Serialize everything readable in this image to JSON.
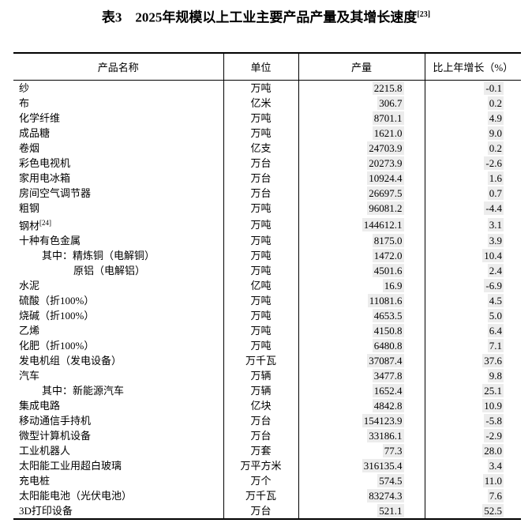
{
  "title": {
    "text": "表3　2025年规模以上工业主要产品产量及其增长速度",
    "superscript": "[23]"
  },
  "table": {
    "headers": {
      "product": "产品名称",
      "unit": "单位",
      "output": "产量",
      "growth": "比上年增长（%）"
    },
    "field_shading_color": "#ececec",
    "border_color": "#000000",
    "rows": [
      {
        "name": "纱",
        "indent": 0,
        "sup": "",
        "unit": "万吨",
        "output": "2215.8",
        "growth": "-0.1"
      },
      {
        "name": "布",
        "indent": 0,
        "sup": "",
        "unit": "亿米",
        "output": "306.7",
        "growth": "0.2"
      },
      {
        "name": "化学纤维",
        "indent": 0,
        "sup": "",
        "unit": "万吨",
        "output": "8701.1",
        "growth": "4.9"
      },
      {
        "name": "成品糖",
        "indent": 0,
        "sup": "",
        "unit": "万吨",
        "output": "1621.0",
        "growth": "9.0"
      },
      {
        "name": "卷烟",
        "indent": 0,
        "sup": "",
        "unit": "亿支",
        "output": "24703.9",
        "growth": "0.2"
      },
      {
        "name": "彩色电视机",
        "indent": 0,
        "sup": "",
        "unit": "万台",
        "output": "20273.9",
        "growth": "-2.6"
      },
      {
        "name": "家用电冰箱",
        "indent": 0,
        "sup": "",
        "unit": "万台",
        "output": "10924.4",
        "growth": "1.6"
      },
      {
        "name": "房间空气调节器",
        "indent": 0,
        "sup": "",
        "unit": "万台",
        "output": "26697.5",
        "growth": "0.7"
      },
      {
        "name": "粗钢",
        "indent": 0,
        "sup": "",
        "unit": "万吨",
        "output": "96081.2",
        "growth": "-4.4"
      },
      {
        "name": "钢材",
        "indent": 0,
        "sup": "[24]",
        "unit": "万吨",
        "output": "144612.1",
        "growth": "3.1"
      },
      {
        "name": "十种有色金属",
        "indent": 0,
        "sup": "",
        "unit": "万吨",
        "output": "8175.0",
        "growth": "3.9"
      },
      {
        "name": "其中：精炼铜（电解铜）",
        "indent": 1,
        "sup": "",
        "unit": "万吨",
        "output": "1472.0",
        "growth": "10.4"
      },
      {
        "name": "原铝（电解铝）",
        "indent": 2,
        "sup": "",
        "unit": "万吨",
        "output": "4501.6",
        "growth": "2.4"
      },
      {
        "name": "水泥",
        "indent": 0,
        "sup": "",
        "unit": "亿吨",
        "output": "16.9",
        "growth": "-6.9"
      },
      {
        "name": "硫酸（折100%）",
        "indent": 0,
        "sup": "",
        "unit": "万吨",
        "output": "11081.6",
        "growth": "4.5"
      },
      {
        "name": "烧碱（折100%）",
        "indent": 0,
        "sup": "",
        "unit": "万吨",
        "output": "4653.5",
        "growth": "5.0"
      },
      {
        "name": "乙烯",
        "indent": 0,
        "sup": "",
        "unit": "万吨",
        "output": "4150.8",
        "growth": "6.4"
      },
      {
        "name": "化肥（折100%）",
        "indent": 0,
        "sup": "",
        "unit": "万吨",
        "output": "6480.8",
        "growth": "7.1"
      },
      {
        "name": "发电机组（发电设备）",
        "indent": 0,
        "sup": "",
        "unit": "万千瓦",
        "output": "37087.4",
        "growth": "37.6"
      },
      {
        "name": "汽车",
        "indent": 0,
        "sup": "",
        "unit": "万辆",
        "output": "3477.8",
        "growth": "9.8"
      },
      {
        "name": "其中：新能源汽车",
        "indent": 1,
        "sup": "",
        "unit": "万辆",
        "output": "1652.4",
        "growth": "25.1"
      },
      {
        "name": "集成电路",
        "indent": 0,
        "sup": "",
        "unit": "亿块",
        "output": "4842.8",
        "growth": "10.9"
      },
      {
        "name": "移动通信手持机",
        "indent": 0,
        "sup": "",
        "unit": "万台",
        "output": "154123.9",
        "growth": "-5.8"
      },
      {
        "name": "微型计算机设备",
        "indent": 0,
        "sup": "",
        "unit": "万台",
        "output": "33186.1",
        "growth": "-2.9"
      },
      {
        "name": "工业机器人",
        "indent": 0,
        "sup": "",
        "unit": "万套",
        "output": "77.3",
        "growth": "28.0"
      },
      {
        "name": "太阳能工业用超白玻璃",
        "indent": 0,
        "sup": "",
        "unit": "万平方米",
        "output": "316135.4",
        "growth": "3.4"
      },
      {
        "name": "充电桩",
        "indent": 0,
        "sup": "",
        "unit": "万个",
        "output": "574.5",
        "growth": "11.0"
      },
      {
        "name": "太阳能电池（光伏电池）",
        "indent": 0,
        "sup": "",
        "unit": "万千瓦",
        "output": "83274.3",
        "growth": "7.6"
      },
      {
        "name": "3D打印设备",
        "indent": 0,
        "sup": "",
        "unit": "万台",
        "output": "521.1",
        "growth": "52.5"
      }
    ]
  }
}
